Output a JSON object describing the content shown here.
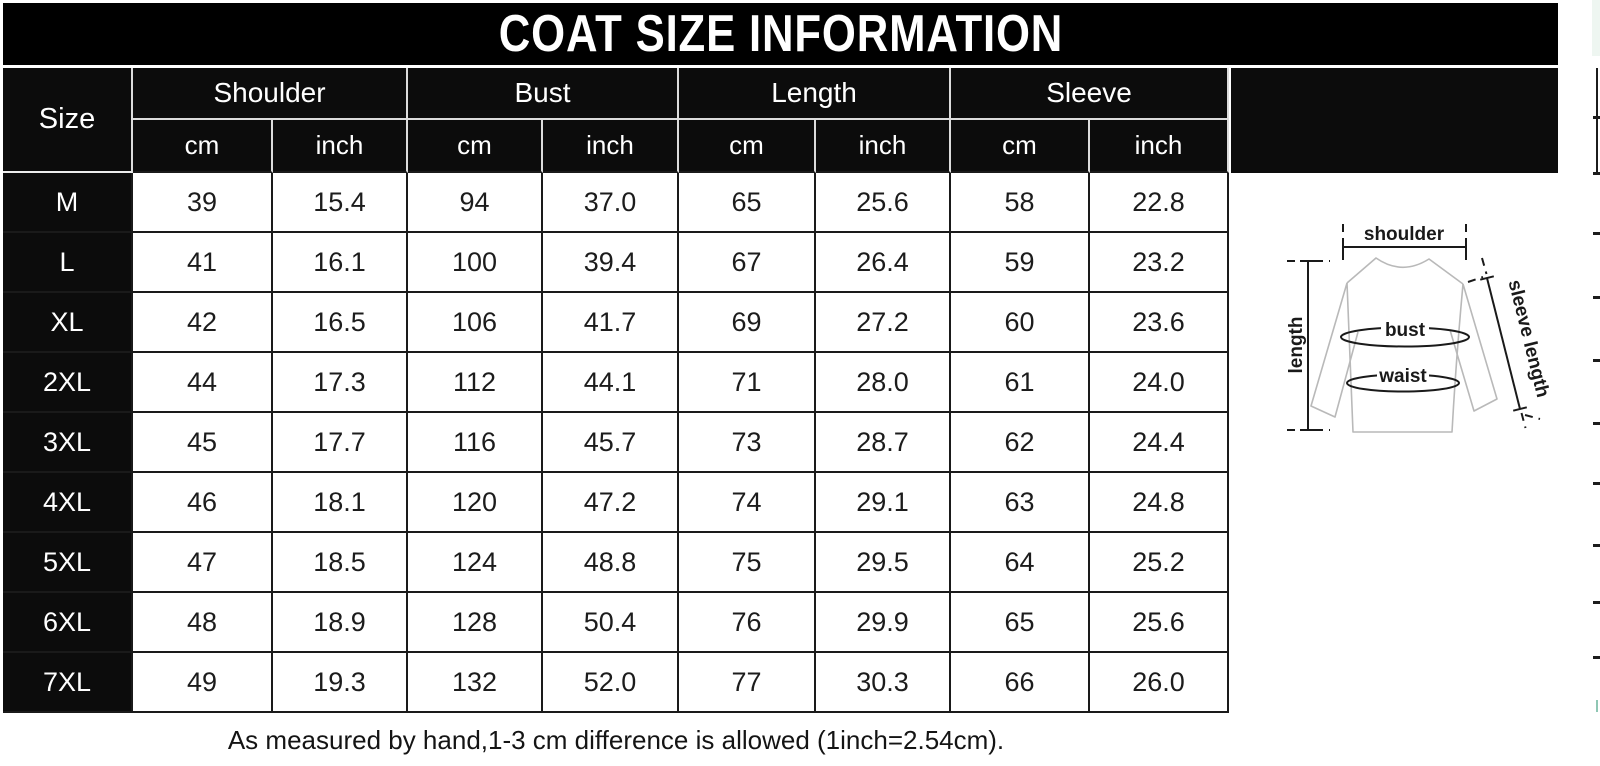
{
  "title": "COAT SIZE INFORMATION",
  "table": {
    "size_header": "Size",
    "groups": [
      {
        "label": "Shoulder"
      },
      {
        "label": "Bust"
      },
      {
        "label": "Length"
      },
      {
        "label": "Sleeve"
      }
    ],
    "units": [
      "cm",
      "inch",
      "cm",
      "inch",
      "cm",
      "inch",
      "cm",
      "inch"
    ],
    "rows": [
      {
        "size": "M",
        "shoulder_cm": "39",
        "shoulder_inch": "15.4",
        "bust_cm": "94",
        "bust_inch": "37.0",
        "length_cm": "65",
        "length_inch": "25.6",
        "sleeve_cm": "58",
        "sleeve_inch": "22.8"
      },
      {
        "size": "L",
        "shoulder_cm": "41",
        "shoulder_inch": "16.1",
        "bust_cm": "100",
        "bust_inch": "39.4",
        "length_cm": "67",
        "length_inch": "26.4",
        "sleeve_cm": "59",
        "sleeve_inch": "23.2"
      },
      {
        "size": "XL",
        "shoulder_cm": "42",
        "shoulder_inch": "16.5",
        "bust_cm": "106",
        "bust_inch": "41.7",
        "length_cm": "69",
        "length_inch": "27.2",
        "sleeve_cm": "60",
        "sleeve_inch": "23.6"
      },
      {
        "size": "2XL",
        "shoulder_cm": "44",
        "shoulder_inch": "17.3",
        "bust_cm": "112",
        "bust_inch": "44.1",
        "length_cm": "71",
        "length_inch": "28.0",
        "sleeve_cm": "61",
        "sleeve_inch": "24.0"
      },
      {
        "size": "3XL",
        "shoulder_cm": "45",
        "shoulder_inch": "17.7",
        "bust_cm": "116",
        "bust_inch": "45.7",
        "length_cm": "73",
        "length_inch": "28.7",
        "sleeve_cm": "62",
        "sleeve_inch": "24.4"
      },
      {
        "size": "4XL",
        "shoulder_cm": "46",
        "shoulder_inch": "18.1",
        "bust_cm": "120",
        "bust_inch": "47.2",
        "length_cm": "74",
        "length_inch": "29.1",
        "sleeve_cm": "63",
        "sleeve_inch": "24.8"
      },
      {
        "size": "5XL",
        "shoulder_cm": "47",
        "shoulder_inch": "18.5",
        "bust_cm": "124",
        "bust_inch": "48.8",
        "length_cm": "75",
        "length_inch": "29.5",
        "sleeve_cm": "64",
        "sleeve_inch": "25.2"
      },
      {
        "size": "6XL",
        "shoulder_cm": "48",
        "shoulder_inch": "18.9",
        "bust_cm": "128",
        "bust_inch": "50.4",
        "length_cm": "76",
        "length_inch": "29.9",
        "sleeve_cm": "65",
        "sleeve_inch": "25.6"
      },
      {
        "size": "7XL",
        "shoulder_cm": "49",
        "shoulder_inch": "19.3",
        "bust_cm": "132",
        "bust_inch": "52.0",
        "length_cm": "77",
        "length_inch": "30.3",
        "sleeve_cm": "66",
        "sleeve_inch": "26.0"
      }
    ]
  },
  "note": "As measured by hand,1-3 cm difference is allowed (1inch=2.54cm).",
  "diagram": {
    "labels": {
      "shoulder": "shoulder",
      "length": "length",
      "bust": "bust",
      "waist": "waist",
      "sleeve_length": "sleeve length"
    }
  },
  "colors": {
    "banner_bg": "#000000",
    "header_bg": "#0c0c0c",
    "grid_dark": "#1a1a1a",
    "grid_light": "#dcdcdc",
    "body_text": "#1c1c1c",
    "header_text": "#ffffff",
    "shirt_outline": "#b9b9b9",
    "edge_artifact": "#1c1c1c",
    "edge_artifact_teal": "#8fc7b4"
  }
}
